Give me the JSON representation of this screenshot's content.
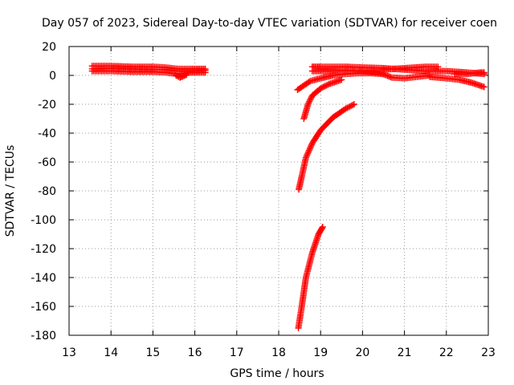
{
  "chart_data": {
    "type": "scatter",
    "title": "Day 057 of 2023, Sidereal Day-to-day VTEC variation (SDTVAR) for receiver coen",
    "xlabel": "GPS time / hours",
    "ylabel": "SDTVAR / TECUs",
    "xlim": [
      13,
      23
    ],
    "ylim": [
      -180,
      20
    ],
    "xticks": [
      "13",
      "14",
      "15",
      "16",
      "17",
      "18",
      "19",
      "20",
      "21",
      "22",
      "23"
    ],
    "yticks": [
      "20",
      "0",
      "-20",
      "-40",
      "-60",
      "-80",
      "-100",
      "-120",
      "-140",
      "-160",
      "-180"
    ],
    "grid": true,
    "marker": "+",
    "color": "#ff0000",
    "series": [
      {
        "segments": [
          {
            "x": [
              13.55,
              14.0,
              14.5,
              15.0,
              15.3,
              15.6,
              15.9,
              16.25
            ],
            "y": [
              4.5,
              5.0,
              4.5,
              4.0,
              4.0,
              3.0,
              3.0,
              3.5
            ]
          },
          {
            "x": [
              13.55,
              14.0,
              14.5,
              15.0,
              15.3,
              15.6,
              15.9,
              16.25
            ],
            "y": [
              3.0,
              3.0,
              2.5,
              2.5,
              2.0,
              1.0,
              2.0,
              2.0
            ]
          },
          {
            "x": [
              13.55,
              14.0,
              14.5,
              15.0,
              15.3,
              15.6,
              15.9,
              16.25
            ],
            "y": [
              6.5,
              6.5,
              6.0,
              6.0,
              5.5,
              4.5,
              4.5,
              4.5
            ]
          },
          {
            "x": [
              15.55,
              15.65,
              15.8
            ],
            "y": [
              0.0,
              -1.5,
              0.5
            ]
          },
          {
            "x": [
              18.45,
              18.6,
              18.75,
              19.0,
              19.3,
              19.6,
              19.9,
              20.2,
              20.5
            ],
            "y": [
              -10,
              -7,
              -4,
              -2,
              0,
              1,
              1.5,
              1.5,
              1
            ]
          },
          {
            "x": [
              18.8,
              19.0,
              19.3,
              19.6,
              20.0,
              20.5,
              21.0,
              21.5,
              22.0,
              22.5,
              22.9
            ],
            "y": [
              6,
              6,
              6,
              6,
              5.5,
              5,
              4,
              3,
              3,
              2,
              1
            ]
          },
          {
            "x": [
              18.8,
              19.2,
              19.6,
              20.0,
              20.4,
              20.7,
              21.0,
              21.3,
              21.6
            ],
            "y": [
              3,
              3,
              3.5,
              3,
              2,
              -1.5,
              -2,
              -1,
              0
            ]
          },
          {
            "x": [
              20.5,
              21.0,
              21.5,
              21.8
            ],
            "y": [
              4,
              5,
              6,
              6
            ]
          },
          {
            "x": [
              21.6,
              22.0,
              22.3,
              22.6,
              22.9
            ],
            "y": [
              -1,
              -2,
              -3,
              -5,
              -8
            ]
          },
          {
            "x": [
              22.2,
              22.5,
              22.8,
              22.9
            ],
            "y": [
              1,
              1,
              2,
              2
            ]
          },
          {
            "x": [
              18.6,
              18.7,
              18.8,
              19.0,
              19.2,
              19.5
            ],
            "y": [
              -30,
              -20,
              -14,
              -9,
              -6,
              -3
            ]
          },
          {
            "x": [
              18.48,
              18.55,
              18.65,
              18.8,
              19.0,
              19.3,
              19.6,
              19.8
            ],
            "y": [
              -79,
              -70,
              -57,
              -47,
              -38,
              -29,
              -23,
              -20
            ]
          },
          {
            "x": [
              18.47,
              18.55,
              18.65,
              18.8,
              18.95,
              19.05
            ],
            "y": [
              -175,
              -160,
              -140,
              -123,
              -110,
              -105
            ]
          }
        ]
      }
    ]
  }
}
